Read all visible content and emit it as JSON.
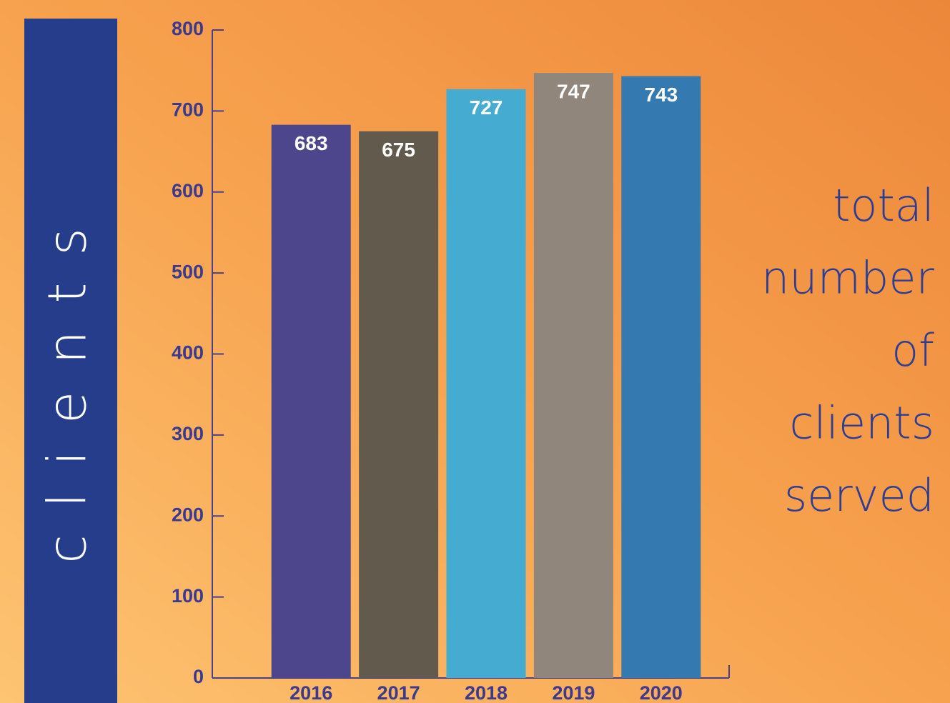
{
  "chart_data": {
    "type": "bar",
    "banner_label": "clients",
    "side_text": [
      "total",
      "number",
      "of",
      "clients",
      "served"
    ],
    "categories": [
      "2016",
      "2017",
      "2018",
      "2019",
      "2020"
    ],
    "values": [
      683,
      675,
      727,
      747,
      743
    ],
    "colors": [
      "#4e468c",
      "#635a4e",
      "#46abd0",
      "#91867c",
      "#347ab0"
    ],
    "ylim": [
      0,
      800
    ],
    "yticks": [
      0,
      100,
      200,
      300,
      400,
      500,
      600,
      700,
      800
    ],
    "grid": false
  }
}
